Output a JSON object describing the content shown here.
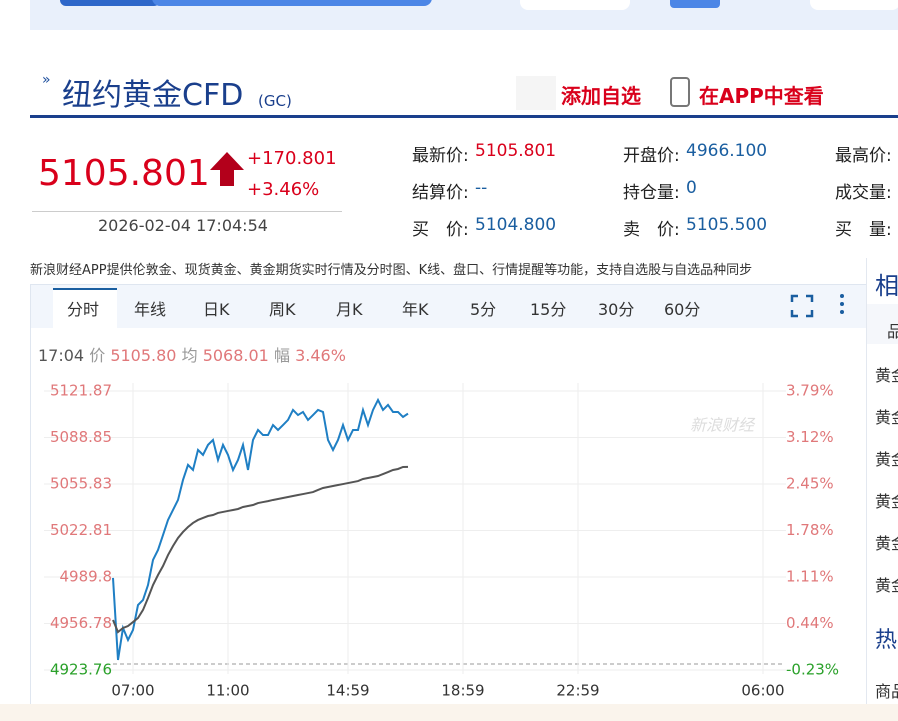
{
  "header": {
    "title": "纽约黄金CFD",
    "code": "(GC)",
    "add_watch": "添加自选",
    "open_app": "在APP中查看"
  },
  "quote": {
    "price": "5105.801",
    "change": "+170.801",
    "percent": "+3.46%",
    "time": "2026-02-04 17:04:54",
    "fields": [
      [
        "最新价:",
        "5105.801"
      ],
      [
        "开盘价:",
        "4966.100"
      ],
      [
        "最高价:"
      ],
      [
        "结算价:",
        "--"
      ],
      [
        "持仓量:",
        "0"
      ],
      [
        "成交量:"
      ],
      [
        "买　价:",
        "5104.800"
      ],
      [
        "卖　价:",
        "5105.500"
      ],
      [
        "买　量:"
      ]
    ]
  },
  "notice": "新浪财经APP提供伦敦金、现货黄金、黄金期货实时行情及分时图、K线、盘口、行情提醒等功能，支持自选股与自选品种同步",
  "tabs": [
    "分时",
    "年线",
    "日K",
    "周K",
    "月K",
    "年K",
    "5分",
    "15分",
    "30分",
    "60分"
  ],
  "info": {
    "time": "17:04",
    "price_label": "价",
    "price": "5105.80",
    "avg_label": "均",
    "avg": "5068.01",
    "range_label": "幅",
    "range": "3.46%"
  },
  "watermark": "新浪财经",
  "sidebar": {
    "title": "相",
    "column": "品",
    "items": [
      "黄金",
      "黄金",
      "黄金",
      "黄金",
      "黄金",
      "黄金"
    ],
    "hot": "热",
    "hot_column": "商品"
  },
  "chart_data": {
    "type": "line",
    "xlim": [
      0,
      134
    ],
    "xticks": [
      {
        "value": 4,
        "label": "07:00"
      },
      {
        "value": 23,
        "label": "11:00"
      },
      {
        "value": 47,
        "label": "14:59"
      },
      {
        "value": 70,
        "label": "18:59"
      },
      {
        "value": 93,
        "label": "22:59"
      },
      {
        "value": 130,
        "label": "06:00"
      }
    ],
    "ylim": [
      4923.76,
      5121.87
    ],
    "yticks": [
      4923.76,
      4956.78,
      4989.8,
      5022.81,
      5055.83,
      5088.85,
      5121.87
    ],
    "y2lim": [
      -0.23,
      3.79
    ],
    "y2ticks": [
      {
        "value": -0.23,
        "label": "-0.23%"
      },
      {
        "value": 0.44,
        "label": "0.44%"
      },
      {
        "value": 1.11,
        "label": "1.11%"
      },
      {
        "value": 1.78,
        "label": "1.78%"
      },
      {
        "value": 2.45,
        "label": "2.45%"
      },
      {
        "value": 3.12,
        "label": "3.12%"
      },
      {
        "value": 3.79,
        "label": "3.79%"
      }
    ],
    "series": [
      {
        "name": "价",
        "color": "#1f7fc4",
        "values": [
          4989.1,
          4930.9,
          4953.6,
          4945.1,
          4952.2,
          4969.9,
          4973.5,
          4984.1,
          5001.9,
          5009.0,
          5019.6,
          5030.3,
          5037.4,
          5044.5,
          5058.7,
          5069.4,
          5065.8,
          5080.0,
          5076.5,
          5083.6,
          5087.1,
          5072.9,
          5083.6,
          5076.5,
          5065.8,
          5072.9,
          5083.6,
          5065.8,
          5087.1,
          5094.2,
          5090.6,
          5090.6,
          5097.7,
          5094.2,
          5097.7,
          5101.3,
          5108.4,
          5104.8,
          5107.0,
          5101.3,
          5104.8,
          5108.4,
          5107.0,
          5087.1,
          5080.0,
          5087.1,
          5097.7,
          5087.1,
          5094.2,
          5094.2,
          5108.4,
          5097.7,
          5108.4,
          5115.5,
          5108.4,
          5112.0,
          5107.0,
          5107.0,
          5103.4,
          5105.8
        ]
      },
      {
        "name": "均",
        "color": "#555555",
        "values": [
          4959.3,
          4950.7,
          4953.6,
          4955.0,
          4957.8,
          4960.7,
          4966.4,
          4974.9,
          4984.1,
          4991.2,
          4997.6,
          5005.4,
          5011.8,
          5017.5,
          5021.8,
          5025.3,
          5028.2,
          5030.3,
          5031.7,
          5033.1,
          5033.8,
          5035.3,
          5036.0,
          5036.7,
          5037.4,
          5038.1,
          5039.5,
          5040.2,
          5040.9,
          5042.3,
          5043.0,
          5043.7,
          5044.5,
          5045.2,
          5045.9,
          5046.6,
          5047.3,
          5048.0,
          5048.7,
          5049.4,
          5050.1,
          5051.6,
          5053.0,
          5053.7,
          5054.4,
          5055.1,
          5055.8,
          5056.5,
          5057.2,
          5057.9,
          5059.4,
          5060.1,
          5060.8,
          5061.5,
          5062.9,
          5064.3,
          5065.8,
          5066.5,
          5067.9,
          5068.0
        ]
      }
    ]
  }
}
